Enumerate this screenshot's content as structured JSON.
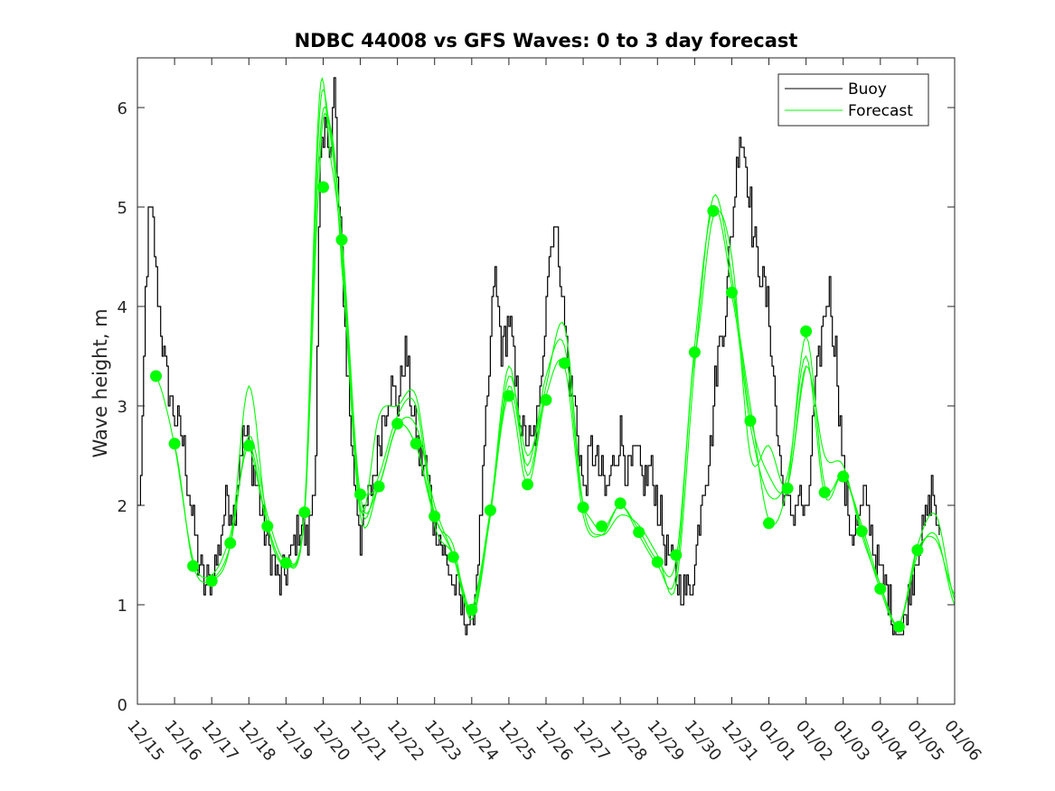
{
  "chart_data": {
    "type": "line",
    "title": "NDBC 44008 vs GFS Waves: 0 to 3 day forecast",
    "xlabel": "",
    "ylabel": "Wave height, m",
    "xlim": [
      0,
      22
    ],
    "ylim": [
      0,
      6.5
    ],
    "yticks": [
      0,
      1,
      2,
      3,
      4,
      5,
      6
    ],
    "x_tick_labels": [
      "12/15",
      "12/16",
      "12/17",
      "12/18",
      "12/19",
      "12/20",
      "12/21",
      "12/22",
      "12/23",
      "12/24",
      "12/25",
      "12/26",
      "12/27",
      "12/28",
      "12/29",
      "12/30",
      "12/31",
      "01/01",
      "01/02",
      "01/03",
      "01/04",
      "01/05",
      "01/06"
    ],
    "legend": {
      "location": "top-right",
      "entries": [
        "Buoy",
        "Forecast"
      ]
    },
    "colors": {
      "buoy": "#000000",
      "forecast": "#00ff00",
      "axis": "#262626"
    },
    "buoy": {
      "name": "Buoy",
      "x": [
        0,
        0.1,
        0.2,
        0.3,
        0.4,
        0.5,
        0.6,
        0.7,
        0.8,
        1.0,
        1.2,
        1.4,
        1.6,
        1.8,
        2.0,
        2.2,
        2.4,
        2.6,
        2.8,
        3.0,
        3.2,
        3.4,
        3.6,
        3.8,
        4.0,
        4.2,
        4.4,
        4.6,
        4.8,
        4.9,
        5.0,
        5.1,
        5.2,
        5.3,
        5.4,
        5.5,
        5.6,
        5.8,
        6.0,
        6.2,
        6.4,
        6.6,
        6.8,
        7.0,
        7.2,
        7.4,
        7.6,
        7.8,
        8.0,
        8.2,
        8.4,
        8.6,
        8.8,
        9.0,
        9.2,
        9.4,
        9.6,
        9.8,
        10.0,
        10.2,
        10.4,
        10.6,
        10.8,
        11.0,
        11.2,
        11.4,
        11.6,
        11.8,
        12.0,
        12.2,
        12.4,
        12.6,
        12.8,
        13.0,
        13.2,
        13.4,
        13.6,
        13.8,
        14.0,
        14.2,
        14.4,
        14.6,
        14.8,
        15.0,
        15.2,
        15.4,
        15.6,
        15.8,
        16.0,
        16.2,
        16.4,
        16.6,
        16.8,
        17.0,
        17.2,
        17.4,
        17.6,
        17.8,
        18.0,
        18.2,
        18.4,
        18.6,
        18.8,
        19.0,
        19.2,
        19.4,
        19.6,
        19.8,
        20.0,
        20.2,
        20.4,
        20.6,
        20.8,
        21.0,
        21.2,
        21.4,
        21.6
      ],
      "values": [
        1.9,
        2.3,
        4.0,
        4.9,
        4.9,
        4.3,
        3.9,
        3.5,
        3.2,
        2.9,
        2.7,
        2.1,
        1.5,
        1.2,
        1.3,
        1.6,
        2.1,
        1.9,
        2.7,
        2.6,
        2.2,
        1.8,
        1.5,
        1.2,
        1.3,
        1.6,
        1.8,
        1.6,
        2.6,
        5.3,
        5.6,
        5.9,
        5.5,
        6.3,
        5.0,
        4.5,
        3.6,
        2.4,
        1.7,
        2.0,
        2.4,
        2.9,
        3.2,
        3.0,
        3.6,
        2.9,
        2.5,
        2.3,
        1.8,
        1.6,
        1.3,
        1.1,
        0.9,
        0.8,
        1.7,
        2.9,
        4.4,
        3.5,
        3.9,
        3.1,
        2.7,
        2.6,
        2.9,
        4.2,
        4.9,
        4.3,
        3.3,
        2.9,
        2.1,
        2.6,
        2.4,
        2.1,
        2.4,
        2.7,
        2.3,
        2.5,
        2.2,
        2.4,
        2.0,
        1.6,
        1.4,
        1.2,
        1.1,
        1.4,
        2.2,
        2.5,
        3.5,
        3.9,
        4.8,
        5.8,
        5.4,
        4.6,
        4.3,
        3.9,
        2.8,
        2.1,
        1.9,
        2.1,
        1.8,
        2.9,
        3.7,
        4.2,
        3.5,
        2.3,
        1.7,
        1.8,
        2.1,
        1.6,
        1.3,
        1.1,
        0.8,
        0.7,
        1.2,
        1.6,
        1.8,
        2.2,
        1.5
      ],
      "noise": 0.22
    },
    "forecast_runs": [
      {
        "x": [
          0.5,
          1.0,
          1.5,
          2.0,
          2.5,
          3.0,
          3.5,
          4.0,
          4.5,
          4.9,
          5.1,
          5.5,
          6.0,
          6.5,
          7.0,
          7.5,
          8.0
        ],
        "values": [
          3.3,
          2.6,
          1.45,
          1.3,
          1.7,
          2.6,
          1.8,
          1.4,
          1.9,
          5.3,
          5.9,
          4.7,
          2.1,
          2.2,
          2.8,
          2.6,
          1.9
        ]
      },
      {
        "x": [
          1.0,
          1.5,
          2.0,
          2.5,
          3.0,
          3.5,
          4.0,
          4.5,
          4.9,
          5.2,
          5.5,
          6.0,
          6.5,
          7.0,
          7.5,
          8.0,
          8.5,
          9.0
        ],
        "values": [
          2.6,
          1.4,
          1.25,
          1.6,
          3.2,
          1.8,
          1.4,
          1.9,
          5.6,
          5.8,
          4.6,
          2.0,
          2.3,
          2.9,
          3.0,
          1.8,
          1.5,
          0.9
        ]
      },
      {
        "x": [
          2.0,
          2.5,
          3.0,
          3.5,
          4.0,
          4.5,
          4.9,
          5.2,
          5.5,
          6.0,
          6.5,
          7.0,
          7.5,
          8.0,
          8.5,
          9.0,
          9.5,
          10.0,
          10.5,
          11.0
        ],
        "values": [
          1.25,
          1.6,
          2.7,
          1.9,
          1.45,
          1.95,
          6.1,
          5.5,
          4.5,
          1.95,
          2.9,
          3.0,
          3.1,
          1.9,
          1.6,
          0.85,
          1.9,
          3.3,
          2.5,
          3.1
        ]
      },
      {
        "x": [
          3.0,
          3.5,
          4.0,
          4.5,
          4.9,
          5.2,
          5.5,
          6.0,
          6.5,
          7.0,
          7.5,
          8.0,
          8.5,
          9.0,
          9.5,
          10.0,
          10.5,
          11.0,
          11.5,
          12.0
        ],
        "values": [
          2.6,
          1.8,
          1.4,
          1.9,
          5.9,
          5.7,
          4.4,
          1.9,
          2.2,
          2.8,
          2.8,
          2.0,
          1.5,
          0.9,
          1.9,
          3.2,
          2.4,
          3.3,
          3.6,
          2.0
        ]
      },
      {
        "x": [
          6.0,
          6.5,
          7.0,
          7.5,
          8.0,
          8.5,
          9.0,
          9.5,
          10.0,
          10.5,
          11.0,
          11.5,
          12.0,
          12.5,
          13.0,
          13.5,
          14.0,
          14.5,
          15.0
        ],
        "values": [
          2.1,
          2.2,
          2.8,
          2.6,
          1.9,
          1.5,
          0.95,
          1.95,
          3.1,
          2.2,
          3.1,
          3.4,
          1.9,
          1.7,
          2.0,
          1.7,
          1.4,
          1.3,
          3.5
        ]
      },
      {
        "x": [
          9.0,
          9.5,
          10.0,
          10.5,
          11.0,
          11.5,
          12.0,
          12.5,
          13.0,
          13.5,
          14.0,
          14.5,
          15.0,
          15.5,
          16.0,
          16.5,
          17.0,
          17.5,
          18.0
        ],
        "values": [
          0.95,
          1.95,
          3.4,
          2.3,
          3.2,
          3.8,
          2.0,
          1.7,
          1.9,
          1.8,
          1.5,
          1.2,
          3.4,
          5.1,
          4.3,
          2.9,
          2.3,
          2.2,
          3.4
        ]
      },
      {
        "x": [
          12.0,
          12.5,
          13.0,
          13.5,
          14.0,
          14.5,
          15.0,
          15.5,
          16.0,
          16.5,
          17.0,
          17.5,
          18.0,
          18.5,
          19.0,
          19.5,
          20.0,
          20.5,
          21.0,
          21.5,
          22.0
        ],
        "values": [
          1.95,
          1.75,
          2.0,
          1.75,
          1.45,
          1.45,
          3.6,
          5.0,
          4.2,
          3.0,
          1.85,
          2.2,
          3.7,
          2.2,
          2.3,
          1.8,
          1.2,
          0.8,
          1.6,
          1.9,
          1.05
        ]
      },
      {
        "x": [
          15.0,
          15.5,
          16.0,
          16.5,
          17.0,
          17.5,
          18.0,
          18.5,
          19.0,
          19.5,
          20.0,
          20.5,
          21.0,
          21.5,
          22.0
        ],
        "values": [
          3.5,
          4.9,
          4.5,
          2.5,
          2.6,
          2.2,
          3.4,
          2.5,
          2.4,
          1.7,
          1.2,
          0.8,
          1.5,
          1.7,
          1.0
        ]
      },
      {
        "x": [
          16.0,
          16.5,
          17.0,
          17.5,
          18.0,
          18.5,
          19.0,
          19.5,
          20.0,
          20.5,
          21.0,
          21.5,
          22.0
        ],
        "values": [
          4.1,
          2.8,
          2.1,
          2.3,
          3.5,
          2.1,
          2.3,
          1.75,
          1.15,
          0.8,
          1.55,
          1.65,
          1.1
        ]
      }
    ],
    "forecast_markers": {
      "x": [
        0.5,
        1.0,
        1.5,
        2.0,
        2.5,
        3.0,
        3.5,
        4.0,
        4.5,
        5.0,
        5.5,
        6.0,
        6.5,
        7.0,
        7.5,
        8.0,
        8.5,
        9.0,
        9.5,
        10.0,
        10.5,
        11.0,
        11.5,
        12.0,
        12.5,
        13.0,
        13.5,
        14.0,
        14.5,
        15.0,
        15.5,
        16.0,
        16.5,
        17.0,
        17.5,
        18.0,
        18.5,
        19.0,
        19.5,
        20.0,
        20.5,
        21.0
      ],
      "values": [
        3.3,
        2.62,
        1.39,
        1.24,
        1.62,
        2.6,
        1.79,
        1.42,
        1.93,
        5.2,
        4.67,
        2.11,
        2.19,
        2.82,
        2.62,
        1.89,
        1.48,
        0.95,
        1.95,
        3.1,
        2.21,
        3.06,
        3.43,
        1.98,
        1.79,
        2.02,
        1.73,
        1.43,
        1.5,
        3.54,
        4.96,
        4.14,
        2.85,
        1.82,
        2.17,
        3.75,
        2.13,
        2.29,
        1.74,
        1.16,
        0.78,
        1.55
      ]
    }
  }
}
